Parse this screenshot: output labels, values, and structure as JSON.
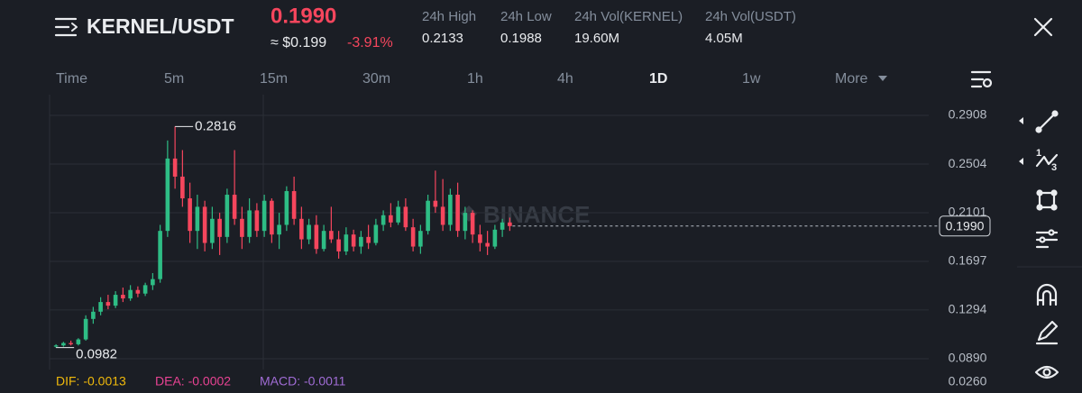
{
  "header": {
    "pair": "KERNEL/USDT",
    "price": "0.1990",
    "usd_price": "≈ $0.199",
    "change": "-3.91%",
    "stats": [
      {
        "label": "24h High",
        "value": "0.2133"
      },
      {
        "label": "24h Low",
        "value": "0.1988"
      },
      {
        "label": "24h Vol(KERNEL)",
        "value": "19.60M"
      },
      {
        "label": "24h Vol(USDT)",
        "value": "4.05M"
      }
    ]
  },
  "intervals": {
    "items": [
      "Time",
      "5m",
      "15m",
      "30m",
      "1h",
      "4h",
      "1D",
      "1w",
      "More"
    ],
    "active": 6
  },
  "chart_data": {
    "type": "candlestick",
    "watermark": "BINANCE",
    "up_color": "#2ebd85",
    "down_color": "#f6465d",
    "grid": true,
    "ylim": [
      0.08,
      0.308
    ],
    "yticks": [
      0.2908,
      0.2504,
      0.2101,
      0.1697,
      0.1294,
      {
        "value": 0.089,
        "label": "0.0890"
      }
    ],
    "last_price": {
      "value": 0.199,
      "label": "0.1990"
    },
    "candles": [
      [
        0.099,
        0.101,
        0.0982,
        0.1
      ],
      [
        0.1,
        0.103,
        0.099,
        0.102
      ],
      [
        0.102,
        0.104,
        0.1,
        0.101
      ],
      [
        0.101,
        0.106,
        0.1,
        0.105
      ],
      [
        0.105,
        0.125,
        0.104,
        0.122
      ],
      [
        0.122,
        0.132,
        0.118,
        0.128
      ],
      [
        0.128,
        0.14,
        0.125,
        0.136
      ],
      [
        0.136,
        0.142,
        0.13,
        0.133
      ],
      [
        0.133,
        0.145,
        0.131,
        0.142
      ],
      [
        0.142,
        0.148,
        0.136,
        0.139
      ],
      [
        0.139,
        0.15,
        0.137,
        0.146
      ],
      [
        0.146,
        0.149,
        0.14,
        0.143
      ],
      [
        0.143,
        0.152,
        0.141,
        0.15
      ],
      [
        0.15,
        0.16,
        0.146,
        0.155
      ],
      [
        0.155,
        0.2,
        0.152,
        0.195
      ],
      [
        0.195,
        0.27,
        0.19,
        0.255
      ],
      [
        0.255,
        0.2816,
        0.23,
        0.24
      ],
      [
        0.24,
        0.262,
        0.215,
        0.222
      ],
      [
        0.222,
        0.235,
        0.185,
        0.195
      ],
      [
        0.195,
        0.225,
        0.18,
        0.215
      ],
      [
        0.215,
        0.22,
        0.178,
        0.185
      ],
      [
        0.185,
        0.215,
        0.18,
        0.205
      ],
      [
        0.205,
        0.21,
        0.175,
        0.19
      ],
      [
        0.19,
        0.23,
        0.185,
        0.225
      ],
      [
        0.225,
        0.262,
        0.2,
        0.205
      ],
      [
        0.205,
        0.215,
        0.18,
        0.19
      ],
      [
        0.19,
        0.222,
        0.185,
        0.212
      ],
      [
        0.212,
        0.218,
        0.19,
        0.195
      ],
      [
        0.195,
        0.225,
        0.19,
        0.22
      ],
      [
        0.22,
        0.222,
        0.185,
        0.192
      ],
      [
        0.192,
        0.21,
        0.18,
        0.2
      ],
      [
        0.2,
        0.232,
        0.195,
        0.228
      ],
      [
        0.228,
        0.24,
        0.2,
        0.205
      ],
      [
        0.205,
        0.215,
        0.18,
        0.188
      ],
      [
        0.188,
        0.205,
        0.184,
        0.2
      ],
      [
        0.2,
        0.208,
        0.176,
        0.18
      ],
      [
        0.18,
        0.2,
        0.178,
        0.195
      ],
      [
        0.195,
        0.215,
        0.185,
        0.188
      ],
      [
        0.188,
        0.195,
        0.172,
        0.178
      ],
      [
        0.178,
        0.198,
        0.175,
        0.192
      ],
      [
        0.192,
        0.196,
        0.178,
        0.182
      ],
      [
        0.182,
        0.195,
        0.176,
        0.19
      ],
      [
        0.19,
        0.2,
        0.18,
        0.185
      ],
      [
        0.185,
        0.205,
        0.183,
        0.2
      ],
      [
        0.2,
        0.212,
        0.195,
        0.208
      ],
      [
        0.208,
        0.218,
        0.198,
        0.202
      ],
      [
        0.202,
        0.22,
        0.2,
        0.215
      ],
      [
        0.215,
        0.222,
        0.195,
        0.198
      ],
      [
        0.198,
        0.205,
        0.178,
        0.182
      ],
      [
        0.182,
        0.2,
        0.176,
        0.195
      ],
      [
        0.195,
        0.225,
        0.192,
        0.22
      ],
      [
        0.22,
        0.245,
        0.21,
        0.215
      ],
      [
        0.215,
        0.238,
        0.195,
        0.2
      ],
      [
        0.2,
        0.23,
        0.195,
        0.225
      ],
      [
        0.225,
        0.235,
        0.19,
        0.195
      ],
      [
        0.195,
        0.215,
        0.188,
        0.21
      ],
      [
        0.21,
        0.212,
        0.185,
        0.192
      ],
      [
        0.192,
        0.2,
        0.178,
        0.185
      ],
      [
        0.185,
        0.195,
        0.175,
        0.182
      ],
      [
        0.182,
        0.2,
        0.18,
        0.196
      ],
      [
        0.196,
        0.205,
        0.19,
        0.202
      ],
      [
        0.202,
        0.206,
        0.195,
        0.199
      ]
    ],
    "macd": {
      "axis_label": {
        "value": 0.026,
        "label": "0.0260"
      },
      "items": [
        {
          "text": "DIF: -0.0013",
          "color": "#f0b90b"
        },
        {
          "text": "DEA: -0.0002",
          "color": "#e84393"
        },
        {
          "text": "MACD: -0.0011",
          "color": "#a06cd5"
        }
      ]
    }
  }
}
